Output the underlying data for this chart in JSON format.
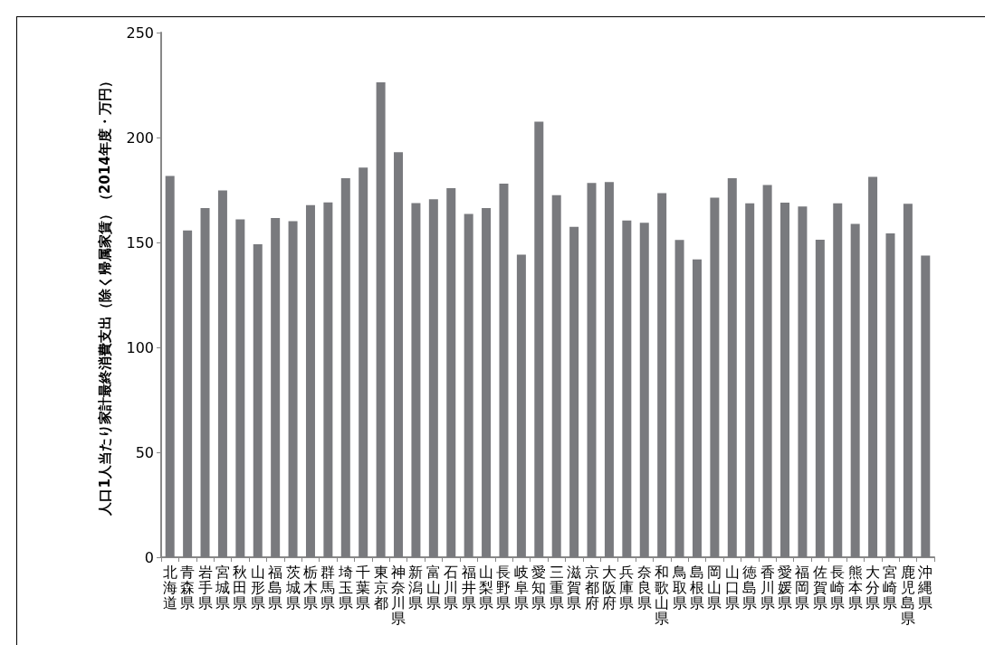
{
  "chart_data": {
    "type": "bar",
    "ylabel": "人口1人当たり家計最終消費支出（除く帰属家賃）（2014年度・万円）",
    "categories": [
      "北海道",
      "青森県",
      "岩手県",
      "宮城県",
      "秋田県",
      "山形県",
      "福島県",
      "茨城県",
      "栃木県",
      "群馬県",
      "埼玉県",
      "千葉県",
      "東京都",
      "神奈川県",
      "新潟県",
      "富山県",
      "石川県",
      "福井県",
      "山梨県",
      "長野県",
      "岐阜県",
      "愛知県",
      "三重県",
      "滋賀県",
      "京都府",
      "大阪府",
      "兵庫県",
      "奈良県",
      "和歌山県",
      "鳥取県",
      "島根県",
      "岡山県",
      "山口県",
      "徳島県",
      "香川県",
      "愛媛県",
      "福岡県",
      "佐賀県",
      "長崎県",
      "熊本県",
      "大分県",
      "宮崎県",
      "鹿児島県",
      "沖縄県"
    ],
    "values": [
      181.7,
      155.7,
      166.4,
      174.8,
      161.0,
      149.1,
      161.6,
      160.1,
      167.8,
      169.1,
      180.6,
      185.7,
      226.3,
      193.0,
      168.8,
      170.6,
      175.9,
      163.6,
      166.4,
      178.0,
      144.2,
      207.5,
      172.5,
      157.4,
      178.3,
      178.8,
      160.4,
      159.4,
      173.5,
      151.2,
      141.9,
      171.3,
      180.6,
      168.6,
      177.4,
      169.0,
      167.1,
      151.3,
      168.6,
      158.8,
      181.3,
      154.3,
      168.4,
      143.8
    ],
    "color": "#797a7e",
    "ylim": [
      0,
      250
    ],
    "yticks": [
      0,
      50,
      100,
      150,
      200,
      250
    ],
    "grid": false
  }
}
